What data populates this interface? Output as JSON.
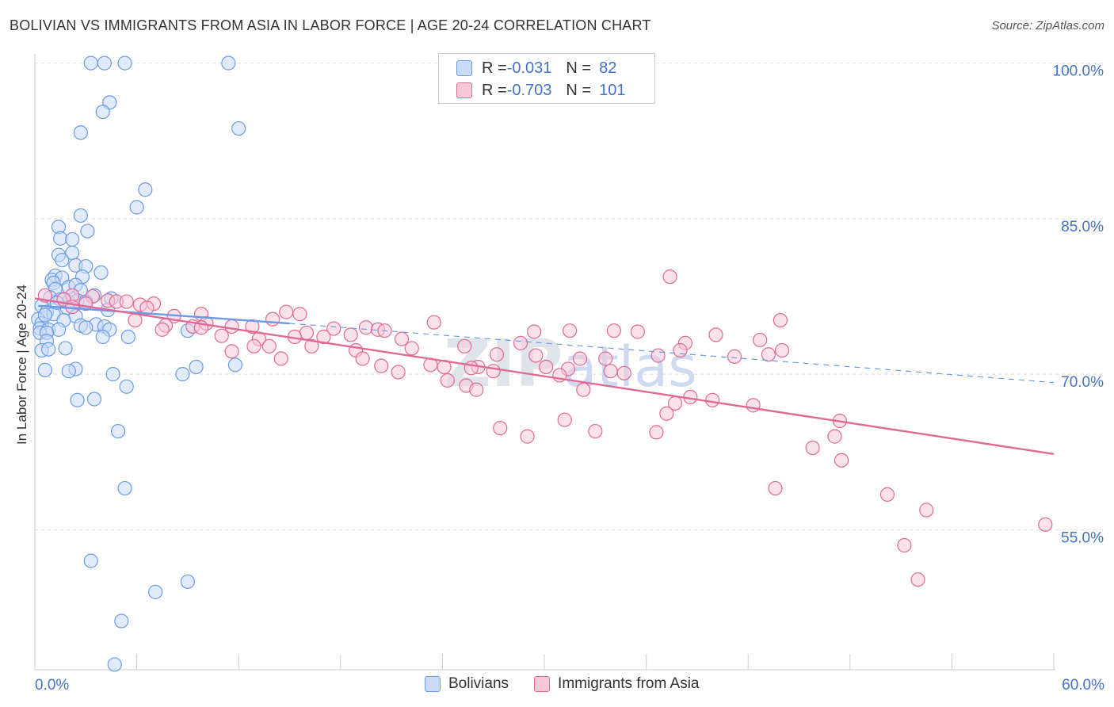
{
  "chart_data": {
    "type": "scatter",
    "title": "BOLIVIAN VS IMMIGRANTS FROM ASIA IN LABOR FORCE | AGE 20-24 CORRELATION CHART",
    "source": "Source: ZipAtlas.com",
    "ylabel": "In Labor Force | Age 20-24",
    "xlim": [
      0,
      60
    ],
    "ylim": [
      41.5,
      101.5
    ],
    "x_tick_labels": {
      "min": "0.0%",
      "max": "60.0%"
    },
    "y_ticks": [
      {
        "value": 100,
        "label": "100.0%"
      },
      {
        "value": 85,
        "label": "85.0%"
      },
      {
        "value": 70,
        "label": "70.0%"
      },
      {
        "value": 55,
        "label": "55.0%"
      }
    ],
    "grid": true,
    "legend_position": "top-center",
    "watermark": "ZIPatlas",
    "series": [
      {
        "name": "Bolivians",
        "r_label": "R = ",
        "r_value": "-0.031",
        "n_label": "N = ",
        "n_value": "82",
        "color": "#6a9be8",
        "fill": "#c9dbf7",
        "trend": {
          "solid": [
            [
              0.2,
              76.6
            ],
            [
              15,
              74.9
            ]
          ],
          "dashed": [
            [
              15,
              74.9
            ],
            [
              60,
              69.2
            ]
          ]
        },
        "points": [
          [
            3.3,
            100
          ],
          [
            4.1,
            100
          ],
          [
            5.3,
            100
          ],
          [
            11.4,
            100
          ],
          [
            4.4,
            96.2
          ],
          [
            4.0,
            95.3
          ],
          [
            2.7,
            93.3
          ],
          [
            12.0,
            93.7
          ],
          [
            6.5,
            87.8
          ],
          [
            6.0,
            86.1
          ],
          [
            2.7,
            85.3
          ],
          [
            3.1,
            83.8
          ],
          [
            1.4,
            84.2
          ],
          [
            1.5,
            83.1
          ],
          [
            2.2,
            83.0
          ],
          [
            1.4,
            81.5
          ],
          [
            2.2,
            81.7
          ],
          [
            1.6,
            81.0
          ],
          [
            2.4,
            80.5
          ],
          [
            3.0,
            80.4
          ],
          [
            3.9,
            79.8
          ],
          [
            1.2,
            79.5
          ],
          [
            2.8,
            79.4
          ],
          [
            1.0,
            79.1
          ],
          [
            1.6,
            79.3
          ],
          [
            1.1,
            78.8
          ],
          [
            1.2,
            78.2
          ],
          [
            2.0,
            78.4
          ],
          [
            2.4,
            78.6
          ],
          [
            2.7,
            78.1
          ],
          [
            3.5,
            77.6
          ],
          [
            0.9,
            77.4
          ],
          [
            1.5,
            77.2
          ],
          [
            2.0,
            77.0
          ],
          [
            2.5,
            77.1
          ],
          [
            3.0,
            77.0
          ],
          [
            4.5,
            77.3
          ],
          [
            0.4,
            76.6
          ],
          [
            1.9,
            76.4
          ],
          [
            4.3,
            76.2
          ],
          [
            0.7,
            76.0
          ],
          [
            1.1,
            75.8
          ],
          [
            2.4,
            75.6
          ],
          [
            0.2,
            75.3
          ],
          [
            1.7,
            75.2
          ],
          [
            0.4,
            74.9
          ],
          [
            2.7,
            74.7
          ],
          [
            3.6,
            74.8
          ],
          [
            4.1,
            74.6
          ],
          [
            0.3,
            74.4
          ],
          [
            0.8,
            74.3
          ],
          [
            1.4,
            74.3
          ],
          [
            3.0,
            74.5
          ],
          [
            4.4,
            74.3
          ],
          [
            0.3,
            74.0
          ],
          [
            0.7,
            74.0
          ],
          [
            9.0,
            74.2
          ],
          [
            4.0,
            73.6
          ],
          [
            5.5,
            73.6
          ],
          [
            0.7,
            73.2
          ],
          [
            0.4,
            72.3
          ],
          [
            0.8,
            72.4
          ],
          [
            1.8,
            72.5
          ],
          [
            11.8,
            70.9
          ],
          [
            9.5,
            70.7
          ],
          [
            0.6,
            70.4
          ],
          [
            2.4,
            70.5
          ],
          [
            2.0,
            70.3
          ],
          [
            4.6,
            70.0
          ],
          [
            8.7,
            70.0
          ],
          [
            5.4,
            68.8
          ],
          [
            3.5,
            67.6
          ],
          [
            2.5,
            67.5
          ],
          [
            4.9,
            64.5
          ],
          [
            5.3,
            59.0
          ],
          [
            3.3,
            52.0
          ],
          [
            9.0,
            50.0
          ],
          [
            7.1,
            49.0
          ],
          [
            5.1,
            46.2
          ],
          [
            4.7,
            42.0
          ],
          [
            0.6,
            75.7
          ],
          [
            1.3,
            76.9
          ]
        ]
      },
      {
        "name": "Immigrants from Asia",
        "r_label": "R = ",
        "r_value": "-0.703",
        "n_label": "N = ",
        "n_value": "101",
        "color": "#e06a96",
        "fill": "#f7c8d8",
        "trend": {
          "solid": [
            [
              0,
              77.3
            ],
            [
              60,
              62.3
            ]
          ]
        },
        "points": [
          [
            37.4,
            79.4
          ],
          [
            0.6,
            77.6
          ],
          [
            2.2,
            77.6
          ],
          [
            3.4,
            77.5
          ],
          [
            1.7,
            77.2
          ],
          [
            4.3,
            77.1
          ],
          [
            4.8,
            77.0
          ],
          [
            5.4,
            77.0
          ],
          [
            3.0,
            76.8
          ],
          [
            6.2,
            76.7
          ],
          [
            7.0,
            76.8
          ],
          [
            6.6,
            76.4
          ],
          [
            2.2,
            76.5
          ],
          [
            14.8,
            76.0
          ],
          [
            9.8,
            75.8
          ],
          [
            15.6,
            75.8
          ],
          [
            8.2,
            75.6
          ],
          [
            5.9,
            75.2
          ],
          [
            14.0,
            75.3
          ],
          [
            23.5,
            75.0
          ],
          [
            43.9,
            75.2
          ],
          [
            10.1,
            74.9
          ],
          [
            7.7,
            74.7
          ],
          [
            9.3,
            74.6
          ],
          [
            11.6,
            74.6
          ],
          [
            12.8,
            74.6
          ],
          [
            17.6,
            74.4
          ],
          [
            19.5,
            74.5
          ],
          [
            20.2,
            74.3
          ],
          [
            20.6,
            74.2
          ],
          [
            7.5,
            74.3
          ],
          [
            9.8,
            74.5
          ],
          [
            34.1,
            74.2
          ],
          [
            35.5,
            74.1
          ],
          [
            16.0,
            74.0
          ],
          [
            18.6,
            73.8
          ],
          [
            29.4,
            74.1
          ],
          [
            31.5,
            74.2
          ],
          [
            40.1,
            73.8
          ],
          [
            11.0,
            73.7
          ],
          [
            13.2,
            73.4
          ],
          [
            15.3,
            73.6
          ],
          [
            17.0,
            73.6
          ],
          [
            21.6,
            73.4
          ],
          [
            28.6,
            73.0
          ],
          [
            38.3,
            73.0
          ],
          [
            42.7,
            73.3
          ],
          [
            13.8,
            72.7
          ],
          [
            16.3,
            72.7
          ],
          [
            12.9,
            72.7
          ],
          [
            25.3,
            72.7
          ],
          [
            22.2,
            72.5
          ],
          [
            38.0,
            72.3
          ],
          [
            44.0,
            72.3
          ],
          [
            11.6,
            72.2
          ],
          [
            18.9,
            72.3
          ],
          [
            27.2,
            71.9
          ],
          [
            29.5,
            71.8
          ],
          [
            32.1,
            71.5
          ],
          [
            33.6,
            71.5
          ],
          [
            36.7,
            71.8
          ],
          [
            41.2,
            71.7
          ],
          [
            43.2,
            71.9
          ],
          [
            14.5,
            71.5
          ],
          [
            19.3,
            71.5
          ],
          [
            23.3,
            70.9
          ],
          [
            26.1,
            70.7
          ],
          [
            20.4,
            70.8
          ],
          [
            21.4,
            70.2
          ],
          [
            24.1,
            70.7
          ],
          [
            25.7,
            70.6
          ],
          [
            27.0,
            70.3
          ],
          [
            30.1,
            70.7
          ],
          [
            31.4,
            70.5
          ],
          [
            33.9,
            70.3
          ],
          [
            34.7,
            70.1
          ],
          [
            30.9,
            69.9
          ],
          [
            24.3,
            69.4
          ],
          [
            25.4,
            68.9
          ],
          [
            26.0,
            68.5
          ],
          [
            32.3,
            68.5
          ],
          [
            37.7,
            67.2
          ],
          [
            38.6,
            67.8
          ],
          [
            39.9,
            67.5
          ],
          [
            42.3,
            67.0
          ],
          [
            37.2,
            66.2
          ],
          [
            31.2,
            65.6
          ],
          [
            27.4,
            64.8
          ],
          [
            29.0,
            64.0
          ],
          [
            33.0,
            64.5
          ],
          [
            36.6,
            64.4
          ],
          [
            47.1,
            64.0
          ],
          [
            47.4,
            65.5
          ],
          [
            45.8,
            62.9
          ],
          [
            47.5,
            61.7
          ],
          [
            43.6,
            59.0
          ],
          [
            50.2,
            58.4
          ],
          [
            52.5,
            56.9
          ],
          [
            51.2,
            53.5
          ],
          [
            52.0,
            50.2
          ],
          [
            59.5,
            55.5
          ]
        ]
      }
    ]
  }
}
